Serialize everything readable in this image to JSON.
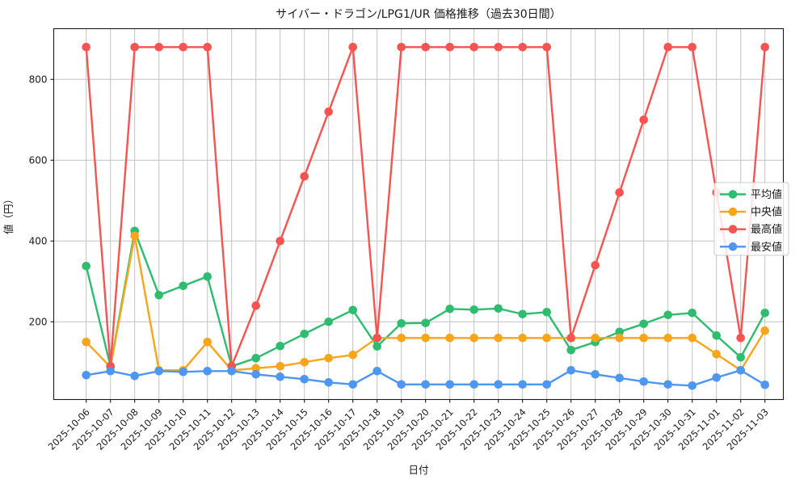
{
  "title": "サイバー・ドラゴン/LPG1/UR 価格推移（過去30日間）",
  "chart_data": {
    "type": "line",
    "xlabel": "日付",
    "ylabel": "値（円）",
    "x": [
      "2025-10-06",
      "2025-10-07",
      "2025-10-08",
      "2025-10-09",
      "2025-10-10",
      "2025-10-11",
      "2025-10-12",
      "2025-10-13",
      "2025-10-14",
      "2025-10-15",
      "2025-10-16",
      "2025-10-17",
      "2025-10-18",
      "2025-10-19",
      "2025-10-20",
      "2025-10-21",
      "2025-10-22",
      "2025-10-23",
      "2025-10-24",
      "2025-10-25",
      "2025-10-26",
      "2025-10-27",
      "2025-10-28",
      "2025-10-29",
      "2025-10-30",
      "2025-10-31",
      "2025-11-01",
      "2025-11-02",
      "2025-11-03"
    ],
    "series": [
      {
        "name": "平均値",
        "color": "#2ebd6f",
        "values": [
          338,
          90,
          425,
          266,
          289,
          312,
          90,
          110,
          140,
          170,
          200,
          229,
          139,
          196,
          197,
          232,
          230,
          233,
          219,
          224,
          130,
          150,
          175,
          195,
          217,
          222,
          166,
          112,
          222
        ]
      },
      {
        "name": "中央値",
        "color": "#f9a51a",
        "values": [
          150,
          88,
          413,
          80,
          80,
          150,
          80,
          85,
          90,
          100,
          110,
          118,
          160,
          160,
          160,
          160,
          160,
          160,
          160,
          160,
          160,
          160,
          160,
          160,
          160,
          160,
          120,
          80,
          178
        ]
      },
      {
        "name": "最高値",
        "color": "#f65351",
        "values": [
          880,
          90,
          880,
          880,
          880,
          880,
          90,
          240,
          400,
          560,
          720,
          880,
          160,
          880,
          880,
          880,
          880,
          880,
          880,
          880,
          160,
          340,
          520,
          700,
          880,
          880,
          520,
          160,
          880
        ]
      },
      {
        "name": "最安値",
        "color": "#4d96f2",
        "values": [
          68,
          78,
          66,
          78,
          76,
          78,
          78,
          70,
          64,
          58,
          50,
          45,
          78,
          45,
          45,
          45,
          45,
          45,
          45,
          45,
          80,
          70,
          61,
          52,
          45,
          42,
          62,
          80,
          44
        ]
      }
    ],
    "yticks": [
      200,
      400,
      600,
      800
    ],
    "ylim": [
      6,
      928
    ],
    "grid": true,
    "legend_position": "inside-right",
    "colors": {
      "grid": "#c3c3c3",
      "frame": "#1a1a1a",
      "legend_border": "#cccccc",
      "background": "#ffffff"
    }
  }
}
